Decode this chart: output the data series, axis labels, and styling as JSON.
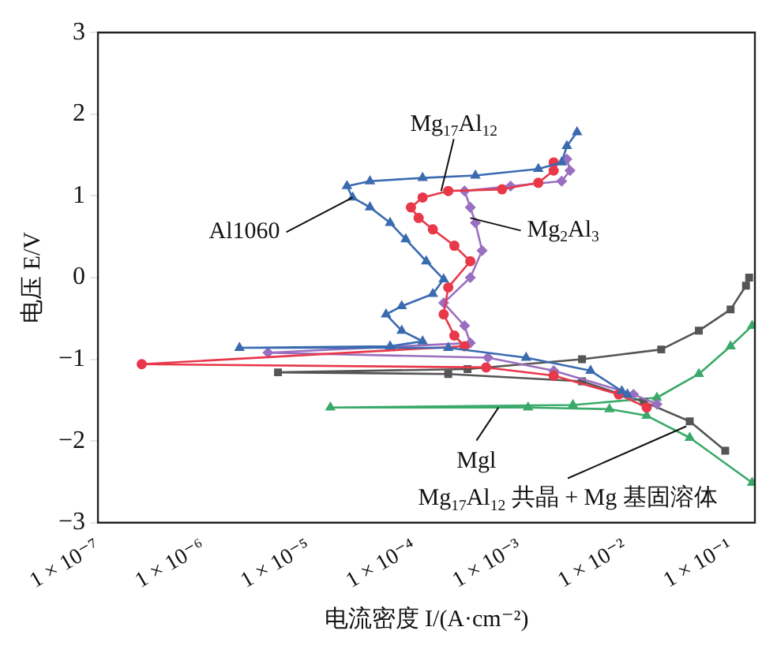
{
  "chart_data": {
    "type": "line",
    "xlabel": "电流密度 I/(A·cm⁻²)",
    "ylabel": "电压 E/V",
    "log": "x",
    "xlim": [
      1e-07,
      0.17
    ],
    "xticks": [
      {
        "value": 1e-07,
        "label": "1 × 10⁻⁷"
      },
      {
        "value": 1e-06,
        "label": "1 × 10⁻⁶"
      },
      {
        "value": 1e-05,
        "label": "1 × 10⁻⁵"
      },
      {
        "value": 0.0001,
        "label": "1 × 10⁻⁴"
      },
      {
        "value": 0.001,
        "label": "1 × 10⁻³"
      },
      {
        "value": 0.01,
        "label": "1 × 10⁻²"
      },
      {
        "value": 0.1,
        "label": "1 × 10⁻¹"
      }
    ],
    "ylim": [
      -3,
      3
    ],
    "yticks": [
      {
        "value": -3,
        "label": "−3"
      },
      {
        "value": -2,
        "label": "−2"
      },
      {
        "value": -1,
        "label": "−1"
      },
      0,
      1,
      2,
      3
    ],
    "grid": false,
    "legend": false,
    "line_style": "solid",
    "series": [
      {
        "color": "#3a6bb0",
        "marker": "triangle",
        "x": [
          0.0105,
          0.0093,
          0.0047,
          0.00115,
          0.00021,
          2.2e-06,
          5.9e-05,
          0.00012,
          7.6e-05,
          5.4e-05,
          7.6e-05,
          0.00015,
          0.00019,
          0.00013,
          8.3e-05,
          5.9e-05,
          3.8e-05,
          2.6e-05,
          2.3e-05,
          3.8e-05,
          0.00012,
          0.00038,
          0.0015,
          0.0025,
          0.0028,
          0.0035
        ],
        "values": [
          -1.43,
          -1.39,
          -1.14,
          -0.98,
          -0.86,
          -0.86,
          -0.84,
          -0.78,
          -0.65,
          -0.45,
          -0.35,
          -0.2,
          -0.02,
          0.2,
          0.47,
          0.67,
          0.86,
          0.98,
          1.12,
          1.18,
          1.22,
          1.25,
          1.33,
          1.41,
          1.61,
          1.78
        ]
      },
      {
        "color": "#e8384a",
        "marker": "circle",
        "x": [
          0.016,
          0.0087,
          0.0021,
          0.00048,
          2.6e-07,
          0.0003,
          0.00024,
          0.00019,
          0.00021,
          0.00034,
          0.00024,
          0.00015,
          0.00011,
          9.3e-05,
          0.00012,
          0.00021,
          0.00068,
          0.0015,
          0.0021,
          0.0021
        ],
        "values": [
          -1.59,
          -1.43,
          -1.2,
          -1.1,
          -1.06,
          -0.84,
          -0.71,
          -0.45,
          -0.12,
          0.2,
          0.39,
          0.59,
          0.73,
          0.86,
          0.98,
          1.06,
          1.08,
          1.16,
          1.31,
          1.41
        ]
      },
      {
        "color": "#9a6fc0",
        "marker": "diamond",
        "x": [
          0.02,
          0.012,
          0.0021,
          0.0005,
          4.1e-06,
          0.00034,
          0.0003,
          0.00019,
          0.00034,
          0.00044,
          0.00038,
          0.00034,
          0.0003,
          0.00082,
          0.0025,
          0.003,
          0.0028
        ],
        "values": [
          -1.55,
          -1.43,
          -1.14,
          -0.98,
          -0.92,
          -0.8,
          -0.59,
          -0.31,
          0.0,
          0.33,
          0.67,
          0.86,
          1.06,
          1.12,
          1.18,
          1.31,
          1.45
        ]
      },
      {
        "color": "#555555",
        "marker": "square",
        "x": [
          0.089,
          0.041,
          0.015,
          0.0039,
          0.00021,
          5.1e-06,
          0.00032,
          0.0039,
          0.022,
          0.05,
          0.1,
          0.14,
          0.15
        ],
        "values": [
          -2.12,
          -1.76,
          -1.52,
          -1.27,
          -1.18,
          -1.16,
          -1.12,
          -1.0,
          -0.88,
          -0.65,
          -0.39,
          -0.1,
          0.0
        ]
      },
      {
        "color": "#3aaa6a",
        "marker": "triangle",
        "x": [
          0.16,
          0.041,
          0.016,
          0.0071,
          0.0012,
          1.6e-05,
          0.0032,
          0.02,
          0.05,
          0.1,
          0.16
        ],
        "values": [
          -2.51,
          -1.96,
          -1.69,
          -1.61,
          -1.59,
          -1.59,
          -1.56,
          -1.47,
          -1.18,
          -0.84,
          -0.59
        ]
      }
    ],
    "annotations": [
      {
        "text": "Al1060",
        "x": 2.6e-05,
        "y": 0.98
      },
      {
        "text": "Mg$_{17}$Al$_{12}$",
        "x": 0.00018,
        "y": 1.06
      },
      {
        "text": "Mg$_{2}$Al$_{3}$",
        "x": 0.00034,
        "y": 0.73
      },
      {
        "text": "Mgl",
        "x": 0.00063,
        "y": -1.59
      },
      {
        "text": "Mg$_{17}$Al$_{12}$ 共晶 + Mg 基固溶体",
        "x": 0.038,
        "y": -1.82
      }
    ]
  }
}
